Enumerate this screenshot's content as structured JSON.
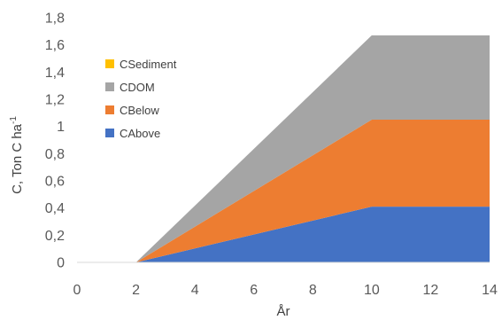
{
  "chart_data": {
    "type": "area",
    "stacked": true,
    "x": [
      0,
      2,
      10,
      14
    ],
    "series": [
      {
        "name": "CAbove",
        "color": "#4472C4",
        "values": [
          0,
          0,
          0.41,
          0.41
        ]
      },
      {
        "name": "CBelow",
        "color": "#ED7D31",
        "values": [
          0,
          0,
          0.64,
          0.64
        ]
      },
      {
        "name": "CDOM",
        "color": "#A5A5A5",
        "values": [
          0,
          0,
          0.62,
          0.62
        ]
      },
      {
        "name": "CSediment",
        "color": "#FFC000",
        "values": [
          0,
          0,
          0,
          0
        ]
      }
    ],
    "xlabel": "År",
    "ylabel_main": "C, Ton C ha",
    "ylabel_sup": "-1",
    "xlim": [
      0,
      14
    ],
    "ylim": [
      0,
      1.8
    ],
    "xticks": [
      "0",
      "2",
      "4",
      "6",
      "8",
      "10",
      "12",
      "14"
    ],
    "yticks": [
      "0",
      "0,2",
      "0,4",
      "0,6",
      "0,8",
      "1",
      "1,2",
      "1,4",
      "1,6",
      "1,8"
    ],
    "legend_order": [
      "CSediment",
      "CDOM",
      "CBelow",
      "CAbove"
    ],
    "legend_position": "left",
    "grid": false,
    "baseline_color": "#D9D9D9"
  }
}
